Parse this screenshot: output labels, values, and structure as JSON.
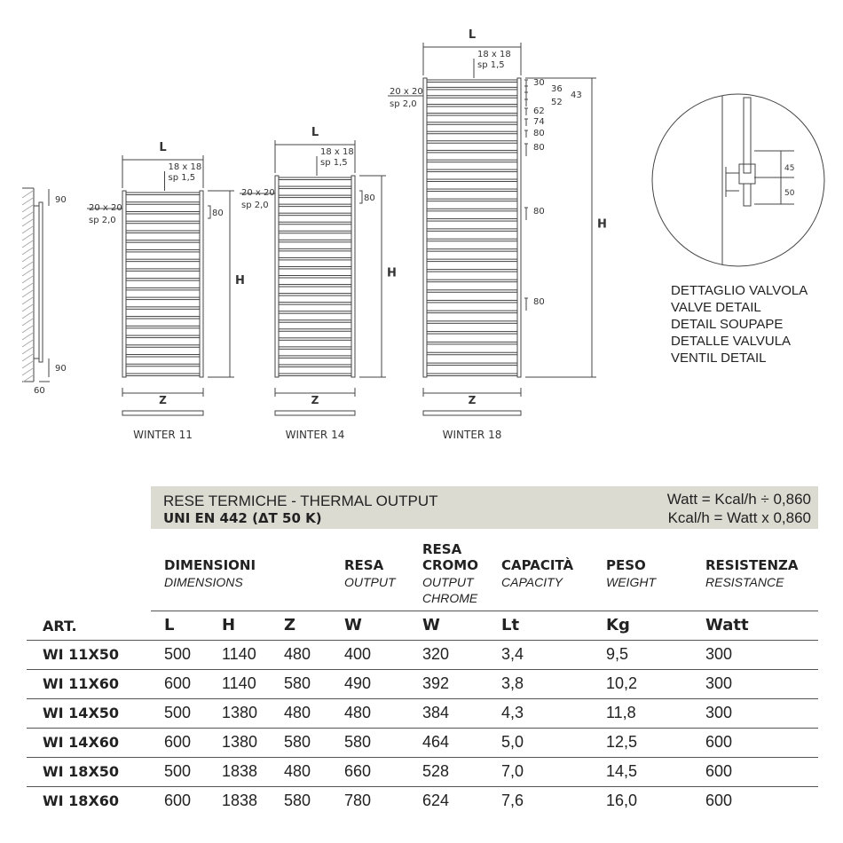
{
  "drawings": {
    "models": [
      {
        "name": "WINTER 11",
        "l": "L",
        "h": "H",
        "z": "Z",
        "tube_top": "18 x 18",
        "tube_top_sp": "sp 1,5",
        "tube_side": "20 x 20",
        "tube_side_sp": "sp 2,0",
        "spacing": "80"
      },
      {
        "name": "WINTER 14",
        "l": "L",
        "h": "H",
        "z": "Z",
        "tube_top": "18 x 18",
        "tube_top_sp": "sp 1,5",
        "tube_side": "20 x 20",
        "tube_side_sp": "sp 2,0",
        "spacing": "80"
      },
      {
        "name": "WINTER 18",
        "l": "L",
        "h": "H",
        "z": "Z",
        "tube_top": "18 x 18",
        "tube_top_sp": "sp 1,5",
        "tube_side": "20 x 20",
        "tube_side_sp": "sp 2,0",
        "spacings": [
          "30",
          "36",
          "43",
          "52",
          "62",
          "74",
          "80",
          "80",
          "80",
          "80"
        ]
      }
    ],
    "side_view": {
      "top": "90",
      "bottom": "90",
      "depth": "60"
    },
    "valve_dims": [
      "45",
      "50"
    ],
    "valve_detail": [
      "DETTAGLIO VALVOLA",
      "VALVE DETAIL",
      "DETAIL SOUPAPE",
      "DETALLE VALVULA",
      "VENTIL DETAIL"
    ]
  },
  "table": {
    "title": "RESE TERMICHE - THERMAL OUTPUT",
    "standard": "UNI EN 442 (ΔT 50 K)",
    "conv1": "Watt = Kcal/h ÷ 0,860",
    "conv2": "Kcal/h = Watt x 0,860",
    "headers": [
      {
        "it": "DIMENSIONI",
        "en": "DIMENSIONS"
      },
      {
        "it": "RESA",
        "en": "OUTPUT"
      },
      {
        "it_top": "RESA",
        "it": "CROMO",
        "en": "OUTPUT",
        "en2": "CHROME"
      },
      {
        "it": "CAPACITÀ",
        "en": "CAPACITY"
      },
      {
        "it": "PESO",
        "en": "WEIGHT"
      },
      {
        "it": "RESISTENZA",
        "en": "RESISTANCE"
      }
    ],
    "units": [
      "ART.",
      "L",
      "H",
      "Z",
      "W",
      "W",
      "Lt",
      "Kg",
      "Watt"
    ],
    "rows": [
      [
        "WI 11X50",
        "500",
        "1140",
        "480",
        "400",
        "320",
        "3,4",
        "9,5",
        "300"
      ],
      [
        "WI 11X60",
        "600",
        "1140",
        "580",
        "490",
        "392",
        "3,8",
        "10,2",
        "300"
      ],
      [
        "WI 14X50",
        "500",
        "1380",
        "480",
        "480",
        "384",
        "4,3",
        "11,8",
        "300"
      ],
      [
        "WI 14X60",
        "600",
        "1380",
        "580",
        "580",
        "464",
        "5,0",
        "12,5",
        "600"
      ],
      [
        "WI 18X50",
        "500",
        "1838",
        "480",
        "660",
        "528",
        "7,0",
        "14,5",
        "600"
      ],
      [
        "WI 18X60",
        "600",
        "1838",
        "580",
        "780",
        "624",
        "7,6",
        "16,0",
        "600"
      ]
    ]
  }
}
